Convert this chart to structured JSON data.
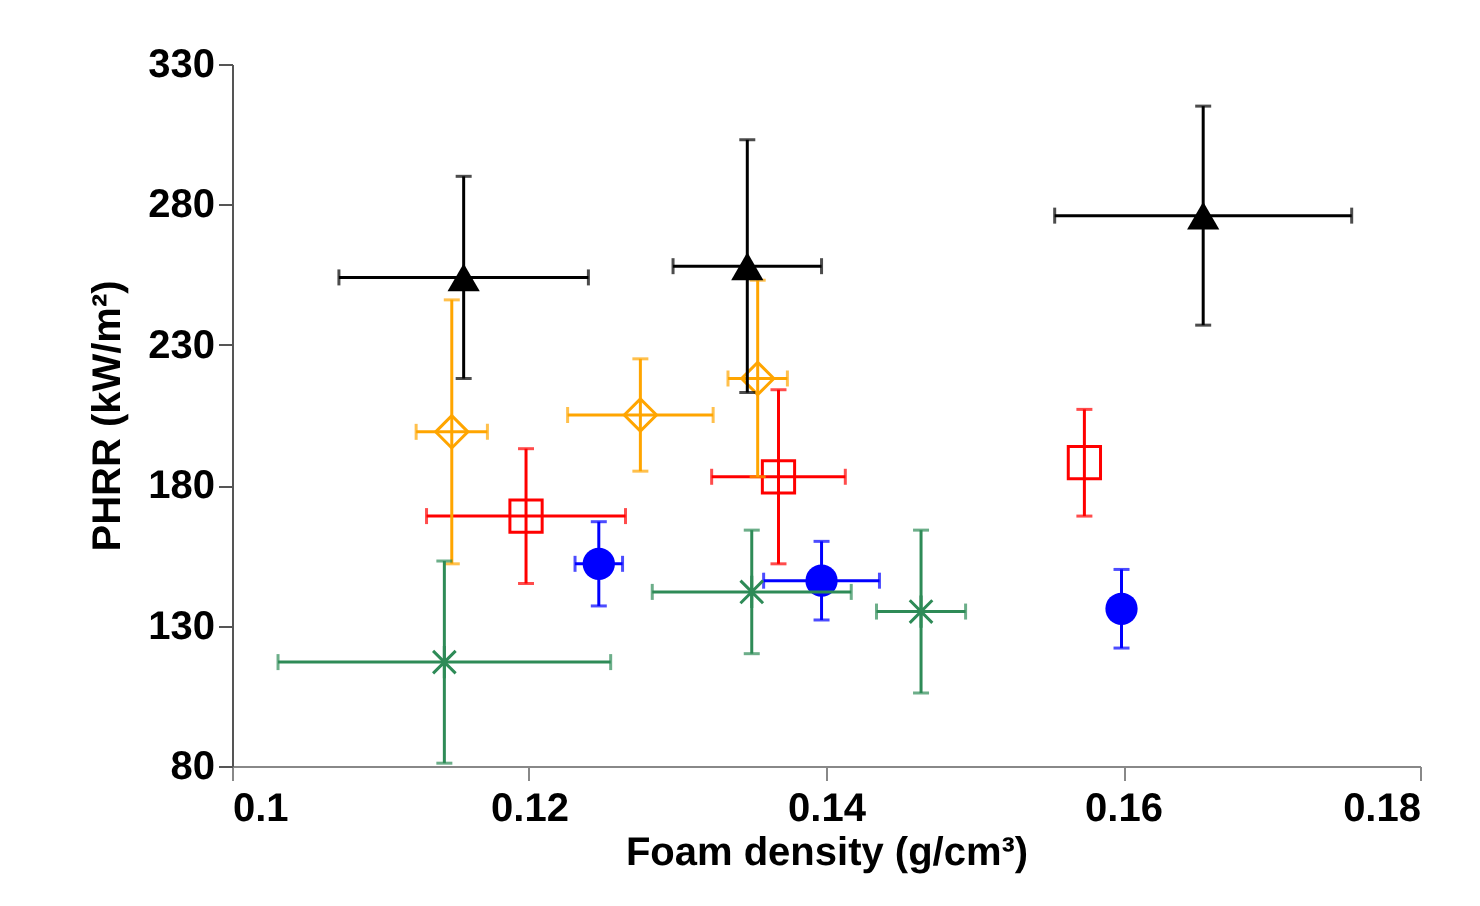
{
  "chart_data": {
    "type": "scatter",
    "xlabel": "Foam density (g/cm³)",
    "ylabel": "PHRR (kW/m²)",
    "xlim": [
      0.1,
      0.18
    ],
    "xticks": [
      0.1,
      0.12,
      0.14,
      0.16,
      0.18
    ],
    "ylim": [
      80,
      330
    ],
    "yticks": [
      80,
      130,
      180,
      230,
      280,
      330
    ],
    "grid": false,
    "legend": false,
    "series": [
      {
        "color": "#ff0000",
        "marker": "square",
        "x": [
          0.1198,
          0.1368,
          0.1574
        ],
        "values": [
          169,
          183,
          188
        ],
        "errors": [
          24,
          31,
          19
        ],
        "xerrors": [
          0.0067,
          0.0045,
          null
        ]
      },
      {
        "color": "#ffa500",
        "marker": "diamond",
        "x": [
          0.1148,
          0.1275,
          0.1354
        ],
        "values": [
          199,
          205,
          218
        ],
        "errors": [
          47,
          20,
          35
        ],
        "xerrors": [
          0.0024,
          0.0049,
          0.002
        ]
      },
      {
        "color": "#0000ff",
        "marker": "circle",
        "x": [
          0.1247,
          0.1397,
          0.1599
        ],
        "values": [
          152,
          146,
          136
        ],
        "errors": [
          15,
          14,
          14
        ],
        "xerrors": [
          0.0016,
          0.0039,
          null
        ]
      },
      {
        "color": "#2e8b57",
        "marker": "cross",
        "x": [
          0.1143,
          0.135,
          0.1464
        ],
        "values": [
          117,
          142,
          135
        ],
        "errors": [
          36,
          22,
          29
        ],
        "xerrors": [
          0.0112,
          0.0067,
          0.003
        ]
      },
      {
        "color": "#000000",
        "marker": "triangle",
        "x": [
          0.1156,
          0.1347,
          0.1654
        ],
        "values": [
          254,
          258,
          276
        ],
        "errors": [
          36,
          45,
          39
        ],
        "xerrors": [
          0.0084,
          0.005,
          0.01
        ]
      }
    ]
  }
}
